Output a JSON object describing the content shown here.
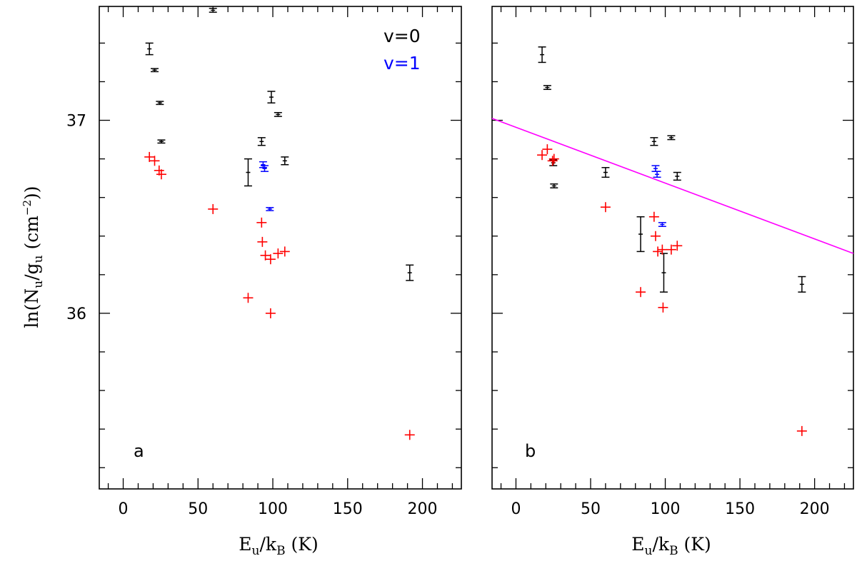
{
  "chart_data": {
    "type": "scatter",
    "xlim": [
      -16,
      226
    ],
    "ylim": [
      35.09,
      37.59
    ],
    "x_ticks": [
      0,
      50,
      100,
      150,
      200
    ],
    "y_ticks": [
      36,
      37
    ],
    "y_minor_step": 0.2,
    "x_minor_step": 10,
    "grid": false,
    "legend_placement": "top-right of panel a",
    "legend": [
      {
        "label": "v=0",
        "color": "#000000"
      },
      {
        "label": "v=1",
        "color": "#0000ff"
      }
    ],
    "colors": {
      "v0": "#000000",
      "v1": "#0000ff",
      "red": "#ff0000",
      "fit": "#ff00ff"
    },
    "xlabel": {
      "prefix": "E",
      "sub1": "u",
      "mid": "/k",
      "sub2": "B",
      "suffix": " (K)"
    },
    "ylabel": {
      "prefix": "ln(N",
      "sub1": "u",
      "mid": "/g",
      "sub2": "u",
      "mid2": " (cm",
      "sup": "−2",
      "suffix": "))"
    },
    "panels": [
      {
        "label": "a",
        "black": [
          {
            "x": 17.5,
            "y": 37.37,
            "err": 0.03
          },
          {
            "x": 60,
            "y": 37.57,
            "err": 0.01
          },
          {
            "x": 21,
            "y": 37.26,
            "err": 0.008
          },
          {
            "x": 24.5,
            "y": 37.09,
            "err": 0.008
          },
          {
            "x": 25.5,
            "y": 36.89,
            "err": 0.008
          },
          {
            "x": 99,
            "y": 37.12,
            "err": 0.03
          },
          {
            "x": 103.5,
            "y": 37.03,
            "err": 0.01
          },
          {
            "x": 92.5,
            "y": 36.89,
            "err": 0.02
          },
          {
            "x": 108,
            "y": 36.79,
            "err": 0.02
          },
          {
            "x": 83.5,
            "y": 36.73,
            "err": 0.07
          },
          {
            "x": 191.5,
            "y": 36.21,
            "err": 0.04
          }
        ],
        "blue": [
          {
            "x": 93.5,
            "y": 36.77,
            "err": 0.015
          },
          {
            "x": 94.5,
            "y": 36.75,
            "err": 0.015
          },
          {
            "x": 98,
            "y": 36.54,
            "err": 0.008
          }
        ],
        "red": [
          {
            "x": 17.5,
            "y": 36.81
          },
          {
            "x": 21,
            "y": 36.79
          },
          {
            "x": 24,
            "y": 36.74
          },
          {
            "x": 25.5,
            "y": 36.72
          },
          {
            "x": 60,
            "y": 36.54
          },
          {
            "x": 92.5,
            "y": 36.47
          },
          {
            "x": 93,
            "y": 36.37
          },
          {
            "x": 95,
            "y": 36.3
          },
          {
            "x": 98.5,
            "y": 36.28
          },
          {
            "x": 103.5,
            "y": 36.31
          },
          {
            "x": 108,
            "y": 36.32
          },
          {
            "x": 83.5,
            "y": 36.08
          },
          {
            "x": 98.5,
            "y": 36.0
          },
          {
            "x": 191.5,
            "y": 35.37
          }
        ]
      },
      {
        "label": "b",
        "black": [
          {
            "x": 17.5,
            "y": 37.34,
            "err": 0.04
          },
          {
            "x": 21,
            "y": 37.17,
            "err": 0.01
          },
          {
            "x": 25,
            "y": 36.78,
            "err": 0.015
          },
          {
            "x": 25.5,
            "y": 36.66,
            "err": 0.01
          },
          {
            "x": 60,
            "y": 36.73,
            "err": 0.025
          },
          {
            "x": 92.5,
            "y": 36.89,
            "err": 0.02
          },
          {
            "x": 104,
            "y": 36.91,
            "err": 0.01
          },
          {
            "x": 108,
            "y": 36.71,
            "err": 0.02
          },
          {
            "x": 83.5,
            "y": 36.41,
            "err": 0.09
          },
          {
            "x": 99,
            "y": 36.21,
            "err": 0.1
          },
          {
            "x": 191.5,
            "y": 36.15,
            "err": 0.04
          }
        ],
        "blue": [
          {
            "x": 93.5,
            "y": 36.75,
            "err": 0.015
          },
          {
            "x": 94.5,
            "y": 36.72,
            "err": 0.015
          },
          {
            "x": 98,
            "y": 36.46,
            "err": 0.01
          }
        ],
        "red": [
          {
            "x": 17.5,
            "y": 36.82
          },
          {
            "x": 21,
            "y": 36.85
          },
          {
            "x": 24.5,
            "y": 36.79
          },
          {
            "x": 25.5,
            "y": 36.8
          },
          {
            "x": 60,
            "y": 36.55
          },
          {
            "x": 92.5,
            "y": 36.5
          },
          {
            "x": 93.5,
            "y": 36.4
          },
          {
            "x": 95,
            "y": 36.32
          },
          {
            "x": 98,
            "y": 36.33
          },
          {
            "x": 104,
            "y": 36.33
          },
          {
            "x": 108,
            "y": 36.35
          },
          {
            "x": 83.5,
            "y": 36.11
          },
          {
            "x": 98.5,
            "y": 36.03
          },
          {
            "x": 191.5,
            "y": 35.39
          }
        ],
        "fit_line": {
          "x": [
            -16,
            226
          ],
          "y": [
            37.01,
            36.31
          ],
          "color": "#ff00ff"
        }
      }
    ]
  }
}
